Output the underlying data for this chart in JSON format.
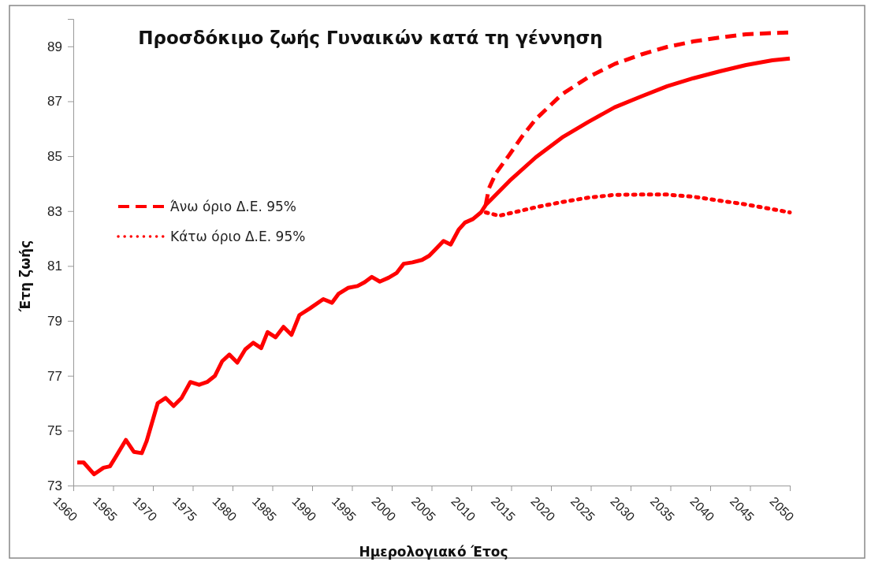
{
  "chart_data": {
    "type": "line",
    "title": "Προσδόκιμο ζωής Γυναικών κατά τη γέννηση",
    "xlabel": "Ημερολογιακό Έτος",
    "ylabel": "Έτη ζωής",
    "xlim": [
      1960,
      2050
    ],
    "xticks": [
      1960,
      1965,
      1970,
      1975,
      1980,
      1985,
      1990,
      1995,
      2000,
      2005,
      2010,
      2015,
      2020,
      2025,
      2030,
      2035,
      2040,
      2045,
      2050
    ],
    "ylim": [
      73,
      90
    ],
    "yticks": [
      73,
      75,
      77,
      79,
      81,
      83,
      85,
      87,
      89
    ],
    "grid": false,
    "legend": "left",
    "marker": "none",
    "series": [
      {
        "color": "#ff0000",
        "line_style": "solid",
        "x": [
          1960.5,
          1961.3,
          1962.6,
          1963.8,
          1964.6,
          1965.3,
          1966.6,
          1967.6,
          1968.6,
          1969.2,
          1970.6,
          1971.6,
          1972.6,
          1973.6,
          1974.7,
          1975.8,
          1976.8,
          1977.8,
          1978.7,
          1979.6,
          1980.6,
          1981.6,
          1982.6,
          1983.6,
          1984.4,
          1985.4,
          1986.4,
          1987.4,
          1988.4,
          1989.7,
          1991.4,
          1992.5,
          1993.3,
          1994.5,
          1995.7,
          1996.6,
          1997.5,
          1998.5,
          1999.6,
          2000.6,
          2001.5,
          2002.6,
          2003.8,
          2004.7,
          2005.5,
          2006.5,
          2007.4,
          2008.4,
          2009.2,
          2010.2,
          2011.2,
          2011.8,
          2014.8,
          2018.1,
          2021.4,
          2024.7,
          2028.0,
          2031.3,
          2034.6,
          2037.9,
          2041.2,
          2044.5,
          2047.8,
          2050
        ],
        "values": [
          73.84,
          73.84,
          73.41,
          73.65,
          73.7,
          74.03,
          74.66,
          74.23,
          74.18,
          74.61,
          76.0,
          76.19,
          75.9,
          76.19,
          76.77,
          76.67,
          76.77,
          77.0,
          77.53,
          77.77,
          77.48,
          77.96,
          78.2,
          78.01,
          78.59,
          78.4,
          78.78,
          78.49,
          79.21,
          79.45,
          79.79,
          79.66,
          79.98,
          80.2,
          80.27,
          80.41,
          80.6,
          80.43,
          80.57,
          80.74,
          81.08,
          81.13,
          81.22,
          81.37,
          81.61,
          81.91,
          81.78,
          82.32,
          82.58,
          82.71,
          82.95,
          83.22,
          84.1,
          84.96,
          85.68,
          86.25,
          86.78,
          87.17,
          87.55,
          87.84,
          88.09,
          88.32,
          88.49,
          88.56
        ]
      },
      {
        "name": "Άνω όριο Δ.Ε. 95%",
        "color": "#ff0000",
        "line_style": "dashed",
        "x": [
          2011.8,
          2012.2,
          2013.1,
          2014.8,
          2016.4,
          2018.1,
          2021.4,
          2024.7,
          2028.0,
          2031.3,
          2034.6,
          2037.9,
          2041.2,
          2044.5,
          2050
        ],
        "values": [
          83.22,
          83.82,
          84.39,
          85.06,
          85.73,
          86.35,
          87.26,
          87.88,
          88.36,
          88.7,
          88.98,
          89.18,
          89.32,
          89.44,
          89.51
        ]
      },
      {
        "name": "Κάτω όριο Δ.Ε. 95%",
        "color": "#ff0000",
        "line_style": "dotted",
        "x": [
          2011.8,
          2013.5,
          2018.1,
          2021.4,
          2024.7,
          2028.0,
          2031.3,
          2034.6,
          2037.9,
          2041.2,
          2044.5,
          2047.8,
          2050
        ],
        "values": [
          82.95,
          82.83,
          83.14,
          83.33,
          83.49,
          83.59,
          83.6,
          83.6,
          83.52,
          83.38,
          83.24,
          83.07,
          82.95
        ]
      }
    ]
  }
}
